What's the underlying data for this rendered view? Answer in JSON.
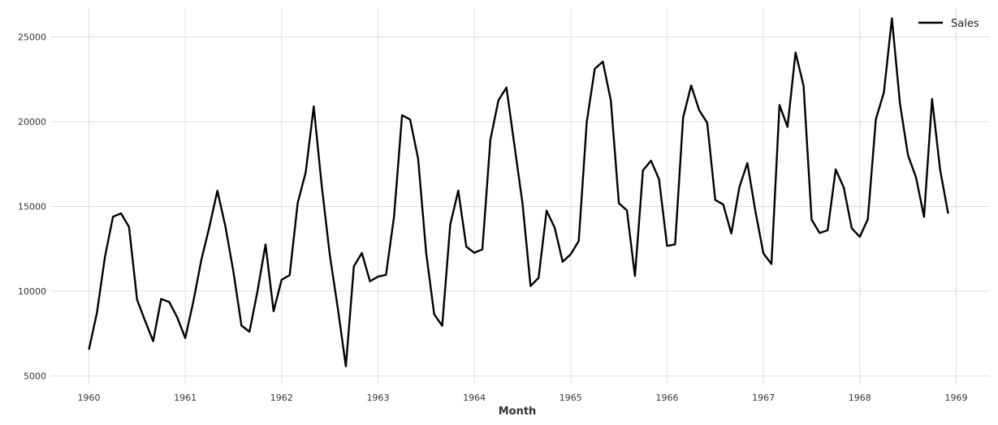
{
  "chart_data": {
    "type": "line",
    "title": "",
    "xlabel": "Month",
    "ylabel": "",
    "xlim": [
      1959.6,
      1969.35
    ],
    "ylim": [
      4500,
      26700
    ],
    "grid": true,
    "legend_position": "top-right",
    "x_ticks": [
      1960,
      1961,
      1962,
      1963,
      1964,
      1965,
      1966,
      1967,
      1968,
      1969
    ],
    "x_tick_labels": [
      "1960",
      "1961",
      "1962",
      "1963",
      "1964",
      "1965",
      "1966",
      "1967",
      "1968",
      "1969"
    ],
    "y_ticks": [
      5000,
      10000,
      15000,
      20000,
      25000
    ],
    "y_tick_labels": [
      "5000",
      "10000",
      "15000",
      "20000",
      "25000"
    ],
    "x_start": "1960-01",
    "x_frequency": "monthly",
    "series": [
      {
        "name": "Sales",
        "color": "#000000",
        "values": [
          6550,
          8728,
          12026,
          14395,
          14587,
          13791,
          9498,
          8251,
          7049,
          9545,
          9364,
          8456,
          7237,
          9374,
          11837,
          13784,
          15926,
          13821,
          11143,
          7975,
          7610,
          10015,
          12759,
          8816,
          10677,
          10947,
          15200,
          17010,
          20900,
          16205,
          12143,
          8997,
          5568,
          11474,
          12256,
          10583,
          10862,
          10965,
          14405,
          20379,
          20128,
          17816,
          12268,
          8642,
          7962,
          13932,
          15936,
          12628,
          12267,
          12470,
          18944,
          21259,
          22015,
          18581,
          15175,
          10306,
          10792,
          14752,
          13754,
          11738,
          12181,
          12965,
          19990,
          23125,
          23541,
          21247,
          15189,
          14767,
          10895,
          17130,
          17697,
          16611,
          12674,
          12760,
          20249,
          22135,
          20677,
          19933,
          15388,
          15113,
          13401,
          16135,
          17562,
          14720,
          12225,
          11608,
          20985,
          19692,
          24081,
          22114,
          14220,
          13434,
          13598,
          17187,
          16119,
          13713,
          13210,
          14251,
          20139,
          21725,
          26099,
          21084,
          18024,
          16722,
          14385,
          21342,
          17180,
          14577
        ]
      }
    ]
  }
}
